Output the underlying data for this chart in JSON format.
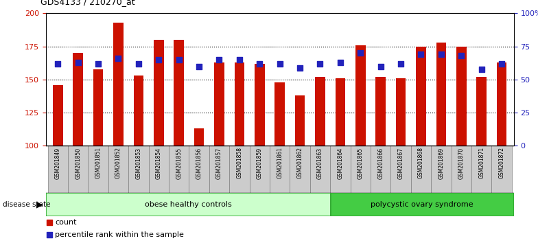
{
  "title": "GDS4133 / 210270_at",
  "samples": [
    "GSM201849",
    "GSM201850",
    "GSM201851",
    "GSM201852",
    "GSM201853",
    "GSM201854",
    "GSM201855",
    "GSM201856",
    "GSM201857",
    "GSM201858",
    "GSM201859",
    "GSM201861",
    "GSM201862",
    "GSM201863",
    "GSM201864",
    "GSM201865",
    "GSM201866",
    "GSM201867",
    "GSM201868",
    "GSM201869",
    "GSM201870",
    "GSM201871",
    "GSM201872"
  ],
  "counts": [
    146,
    170,
    158,
    193,
    153,
    180,
    180,
    113,
    163,
    163,
    162,
    148,
    138,
    152,
    151,
    176,
    152,
    151,
    175,
    178,
    175,
    152,
    163
  ],
  "percentiles": [
    62,
    63,
    62,
    66,
    62,
    65,
    65,
    60,
    65,
    65,
    62,
    62,
    59,
    62,
    63,
    70,
    60,
    62,
    69,
    69,
    68,
    58,
    62
  ],
  "n_obese": 14,
  "n_poly": 9,
  "ymin": 100,
  "ymax": 200,
  "yticks_left": [
    100,
    125,
    150,
    175,
    200
  ],
  "yticks_right": [
    0,
    25,
    50,
    75,
    100
  ],
  "ytick_right_labels": [
    "0",
    "25",
    "50",
    "75",
    "100%"
  ],
  "hgrid_vals": [
    125,
    150,
    175
  ],
  "bar_color": "#cc1100",
  "dot_color": "#2222bb",
  "obese_bg": "#ccffcc",
  "poly_bg": "#44cc44",
  "tick_bg": "#cccccc",
  "group1_label": "obese healthy controls",
  "group2_label": "polycystic ovary syndrome",
  "disease_state_label": "disease state",
  "legend_count_label": "count",
  "legend_pct_label": "percentile rank within the sample",
  "bar_width": 0.5
}
